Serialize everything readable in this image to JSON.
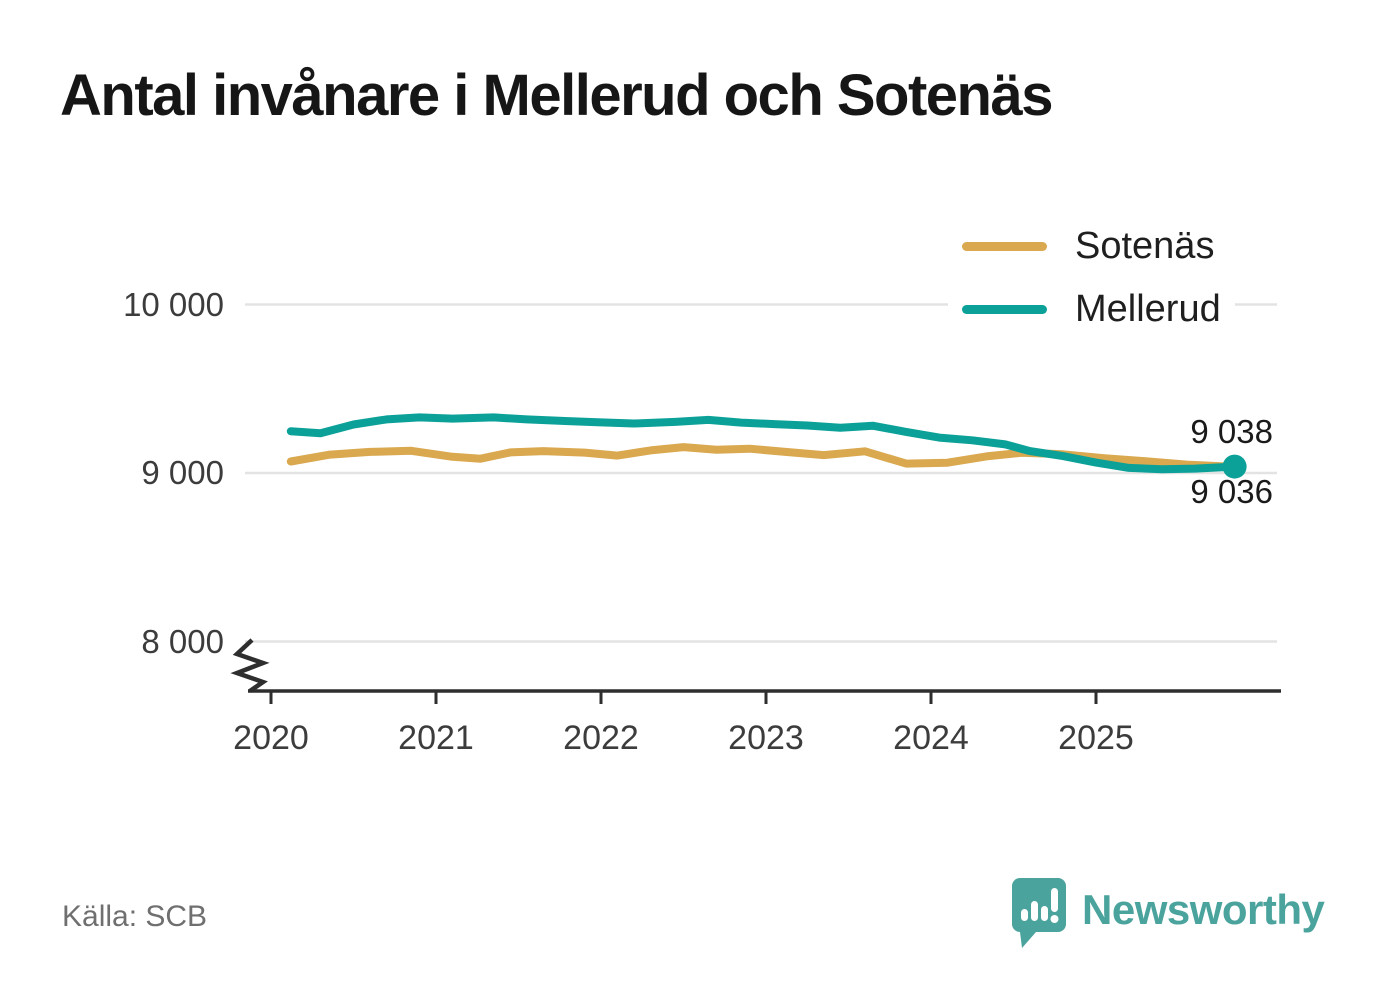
{
  "title": "Antal invånare i Mellerud och Sotenäs",
  "source": "Källa: SCB",
  "branding": {
    "name": "Newsworthy",
    "logo_icon": "bar-chart-speech-bubble-icon",
    "color": "#4aa39c"
  },
  "legend": [
    {
      "label": "Sotenäs",
      "color": "#d9a84f"
    },
    {
      "label": "Mellerud",
      "color": "#0ba198"
    }
  ],
  "chart_data": {
    "type": "line",
    "title": "Antal invånare i Mellerud och Sotenäs",
    "xlabel": "",
    "ylabel": "",
    "grid": "horizontal",
    "legend_position": "top-right",
    "broken_y_axis": true,
    "xlim": [
      2019.85,
      2026.12
    ],
    "ylim_shown": [
      7800,
      10000
    ],
    "x_axis": {
      "ticks": [
        2020,
        2021,
        2022,
        2023,
        2024,
        2025
      ]
    },
    "y_axis": {
      "ticks": [
        {
          "value": 10000,
          "label": "10 000"
        },
        {
          "value": 9000,
          "label": "9 000"
        },
        {
          "value": 8000,
          "label": "8 000"
        }
      ]
    },
    "series": [
      {
        "name": "Sotenäs",
        "color": "#d9a84f",
        "end_value": 9036,
        "end_label": "9 036",
        "marker_end": false,
        "points": [
          [
            2020.12,
            9068
          ],
          [
            2020.35,
            9108
          ],
          [
            2020.6,
            9125
          ],
          [
            2020.85,
            9132
          ],
          [
            2021.1,
            9096
          ],
          [
            2021.27,
            9085
          ],
          [
            2021.45,
            9122
          ],
          [
            2021.65,
            9130
          ],
          [
            2021.9,
            9121
          ],
          [
            2022.1,
            9103
          ],
          [
            2022.3,
            9134
          ],
          [
            2022.5,
            9154
          ],
          [
            2022.7,
            9138
          ],
          [
            2022.9,
            9144
          ],
          [
            2023.1,
            9127
          ],
          [
            2023.35,
            9106
          ],
          [
            2023.6,
            9129
          ],
          [
            2023.85,
            9056
          ],
          [
            2024.1,
            9061
          ],
          [
            2024.35,
            9100
          ],
          [
            2024.55,
            9120
          ],
          [
            2024.8,
            9111
          ],
          [
            2025.05,
            9088
          ],
          [
            2025.3,
            9070
          ],
          [
            2025.55,
            9050
          ],
          [
            2025.84,
            9036
          ]
        ]
      },
      {
        "name": "Mellerud",
        "color": "#0ba198",
        "end_value": 9038,
        "end_label": "9 038",
        "marker_end": true,
        "points": [
          [
            2020.12,
            9248
          ],
          [
            2020.3,
            9236
          ],
          [
            2020.5,
            9288
          ],
          [
            2020.7,
            9318
          ],
          [
            2020.9,
            9330
          ],
          [
            2021.1,
            9323
          ],
          [
            2021.35,
            9330
          ],
          [
            2021.55,
            9318
          ],
          [
            2021.8,
            9308
          ],
          [
            2022.0,
            9300
          ],
          [
            2022.2,
            9294
          ],
          [
            2022.45,
            9303
          ],
          [
            2022.65,
            9315
          ],
          [
            2022.85,
            9299
          ],
          [
            2023.05,
            9290
          ],
          [
            2023.25,
            9282
          ],
          [
            2023.45,
            9268
          ],
          [
            2023.65,
            9280
          ],
          [
            2023.85,
            9244
          ],
          [
            2024.05,
            9210
          ],
          [
            2024.25,
            9194
          ],
          [
            2024.45,
            9170
          ],
          [
            2024.6,
            9130
          ],
          [
            2024.8,
            9100
          ],
          [
            2025.0,
            9062
          ],
          [
            2025.2,
            9030
          ],
          [
            2025.4,
            9022
          ],
          [
            2025.6,
            9026
          ],
          [
            2025.84,
            9038
          ]
        ]
      }
    ]
  }
}
